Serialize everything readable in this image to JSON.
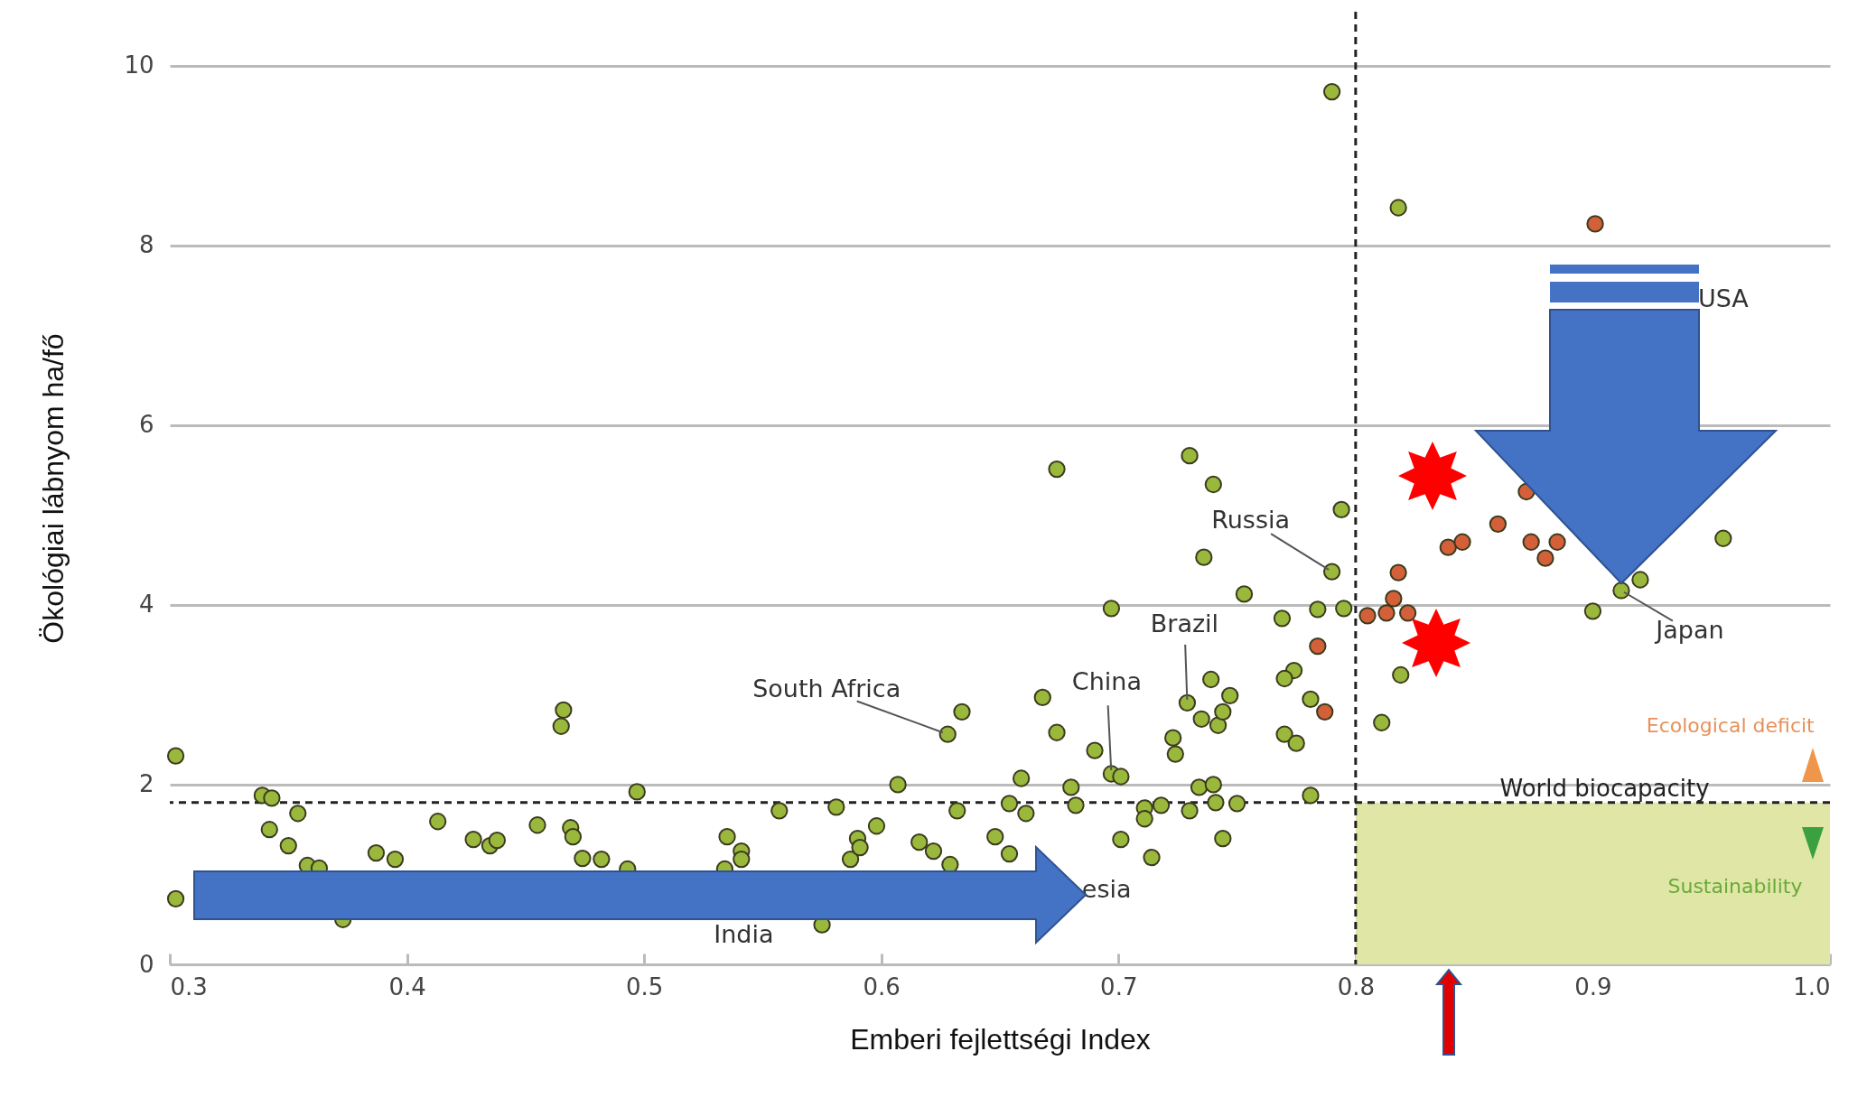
{
  "chart_data": {
    "type": "scatter",
    "xlabel": "Emberi fejlettségi Index",
    "ylabel": "Ökológiai lábnyom    ha/fő",
    "xlim": [
      0.3,
      1.0
    ],
    "ylim": [
      0,
      10.6
    ],
    "xticks": [
      0.3,
      0.4,
      0.5,
      0.6,
      0.7,
      0.8,
      0.9,
      {
        "value": 1,
        "label": "1.0"
      }
    ],
    "yticks": [
      0,
      2,
      4,
      6,
      8,
      10
    ],
    "grid": "y",
    "marker": "circle",
    "series": [
      {
        "color": "#9ab83c",
        "x": [
          0.3025,
          0.3025,
          0.339,
          0.343,
          0.354,
          0.342,
          0.35,
          0.358,
          0.363,
          0.373,
          0.387,
          0.395,
          0.413,
          0.428,
          0.435,
          0.438,
          0.455,
          0.469,
          0.47,
          0.466,
          0.465,
          0.474,
          0.482,
          0.497,
          0.493,
          0.535,
          0.541,
          0.541,
          0.534,
          0.557,
          0.581,
          0.59,
          0.587,
          0.591,
          0.598,
          0.607,
          0.616,
          0.622,
          0.629,
          0.628,
          0.634,
          0.632,
          0.575,
          0.648,
          0.654,
          0.659,
          0.654,
          0.661,
          0.668,
          0.674,
          0.674,
          0.68,
          0.682,
          0.69,
          0.697,
          0.701,
          0.697,
          0.701,
          0.714,
          0.711,
          0.718,
          0.711,
          0.73,
          0.73,
          0.74,
          0.736,
          0.753,
          0.744,
          0.75,
          0.741,
          0.734,
          0.74,
          0.729,
          0.739,
          0.735,
          0.742,
          0.747,
          0.744,
          0.723,
          0.724,
          0.769,
          0.774,
          0.77,
          0.77,
          0.775,
          0.781,
          0.781,
          0.784,
          0.79,
          0.795,
          0.794,
          0.79,
          0.818,
          0.811,
          0.819,
          0.9,
          0.912,
          0.92,
          0.955
        ],
        "values": [
          2.32,
          0.73,
          1.88,
          1.85,
          1.68,
          1.5,
          1.32,
          1.1,
          1.07,
          0.5,
          1.24,
          1.17,
          1.59,
          1.39,
          1.32,
          1.38,
          1.55,
          1.52,
          1.42,
          2.83,
          2.65,
          1.18,
          1.17,
          1.92,
          1.06,
          1.42,
          1.26,
          1.17,
          1.06,
          1.71,
          1.75,
          1.4,
          1.17,
          1.3,
          1.54,
          2.0,
          1.36,
          1.26,
          1.11,
          2.56,
          2.81,
          1.71,
          0.44,
          1.42,
          1.23,
          2.07,
          1.79,
          1.68,
          2.97,
          2.58,
          5.51,
          1.97,
          1.77,
          2.38,
          2.12,
          2.09,
          3.96,
          1.39,
          1.19,
          1.74,
          1.77,
          1.62,
          1.71,
          5.66,
          5.34,
          4.53,
          4.12,
          1.4,
          1.79,
          1.8,
          1.97,
          2.0,
          2.91,
          3.17,
          2.73,
          2.66,
          2.99,
          2.81,
          2.52,
          2.34,
          3.85,
          3.27,
          3.18,
          2.56,
          2.46,
          1.88,
          2.95,
          3.95,
          4.37,
          3.96,
          5.06,
          9.71,
          8.42,
          2.69,
          3.22,
          3.93,
          4.16,
          4.28,
          4.74
        ]
      },
      {
        "color": "#d4603a",
        "x": [
          0.784,
          0.787,
          0.805,
          0.816,
          0.818,
          0.822,
          0.813,
          0.839,
          0.845,
          0.86,
          0.872,
          0.874,
          0.88,
          0.885,
          0.901
        ],
        "values": [
          3.54,
          2.81,
          3.88,
          4.07,
          4.36,
          3.91,
          3.91,
          4.64,
          4.7,
          4.9,
          5.26,
          4.7,
          4.52,
          4.7,
          8.24
        ]
      }
    ],
    "ref_lines": [
      {
        "axis": "y",
        "value": 1.8,
        "label": "World biocapacity",
        "line_style": "dashed",
        "color": "#222222"
      },
      {
        "axis": "x",
        "value": 0.8,
        "line_style": "dashed",
        "color": "#222222"
      }
    ],
    "bands": [
      {
        "axis": "y",
        "from": 0,
        "to": 1.8,
        "label": "Sustainability",
        "color": "#dfe6a6"
      }
    ],
    "annotations": [
      {
        "text": "Russia",
        "x": 0.79,
        "y": 4.37
      },
      {
        "text": "Brazil",
        "x": 0.729,
        "y": 2.91
      },
      {
        "text": "China",
        "x": 0.697,
        "y": 2.12
      },
      {
        "text": "South Africa",
        "x": 0.628,
        "y": 2.56
      },
      {
        "text": "Japan",
        "x": 0.912,
        "y": 4.16
      },
      "USA",
      "India",
      "esia",
      "Ecological deficit"
    ]
  }
}
